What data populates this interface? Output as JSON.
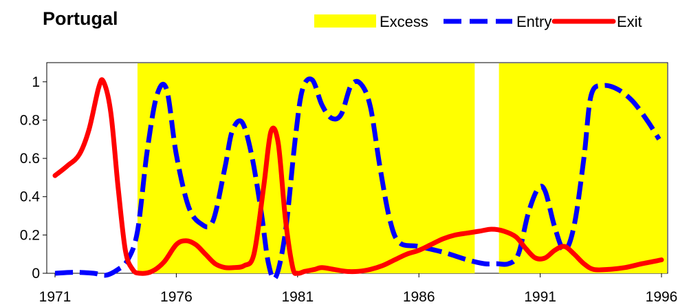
{
  "chart_data": {
    "type": "line",
    "title": "Portugal",
    "xlabel": "",
    "ylabel": "",
    "xlim": [
      1971,
      1996
    ],
    "ylim": [
      0,
      1.1
    ],
    "x_ticks": [
      "1971",
      "1976",
      "1981",
      "1986",
      "1991",
      "1996"
    ],
    "y_ticks": [
      "0",
      "0.2",
      "0.4",
      "0.6",
      "0.8",
      "1"
    ],
    "legend_position": "top-right",
    "excess_periods": [
      {
        "start": 1974.4,
        "end": 1988.3
      },
      {
        "start": 1989.3,
        "end": 1996.6
      }
    ],
    "series": [
      {
        "name": "Entry",
        "color": "#0000ff",
        "style": "dashed",
        "x": [
          1971,
          1971.8,
          1972.6,
          1973.1,
          1973.6,
          1974.0,
          1974.4,
          1974.8,
          1975.2,
          1975.6,
          1976.0,
          1976.5,
          1977.0,
          1977.5,
          1978.0,
          1978.3,
          1978.7,
          1979.1,
          1979.5,
          1979.8,
          1980.1,
          1980.5,
          1980.9,
          1981.2,
          1981.6,
          1982.0,
          1982.4,
          1982.8,
          1983.2,
          1983.6,
          1984.0,
          1984.4,
          1984.8,
          1985.2,
          1986.0,
          1987.0,
          1988.0,
          1988.7,
          1989.2,
          1989.7,
          1990.1,
          1990.5,
          1990.9,
          1991.2,
          1991.6,
          1992.0,
          1992.4,
          1992.8,
          1993.1,
          1993.6,
          1994.2,
          1994.8,
          1995.4,
          1995.9
        ],
        "values": [
          0.0,
          0.005,
          0.0,
          -0.01,
          0.02,
          0.07,
          0.22,
          0.64,
          0.93,
          0.96,
          0.62,
          0.35,
          0.26,
          0.27,
          0.55,
          0.74,
          0.79,
          0.62,
          0.32,
          0.05,
          -0.02,
          0.22,
          0.7,
          0.96,
          1.01,
          0.88,
          0.81,
          0.83,
          0.98,
          0.99,
          0.87,
          0.55,
          0.28,
          0.16,
          0.14,
          0.11,
          0.07,
          0.05,
          0.05,
          0.05,
          0.1,
          0.31,
          0.44,
          0.43,
          0.24,
          0.12,
          0.25,
          0.6,
          0.93,
          0.98,
          0.96,
          0.9,
          0.8,
          0.7
        ]
      },
      {
        "name": "Exit",
        "color": "#ff0000",
        "style": "solid",
        "x": [
          1971,
          1971.5,
          1972.0,
          1972.4,
          1972.8,
          1973.0,
          1973.3,
          1973.6,
          1973.9,
          1974.2,
          1974.5,
          1975.0,
          1975.5,
          1976.0,
          1976.4,
          1976.8,
          1977.2,
          1977.6,
          1978.0,
          1978.4,
          1978.8,
          1979.2,
          1979.6,
          1979.9,
          1980.2,
          1980.5,
          1980.8,
          1981.0,
          1981.3,
          1981.7,
          1982.0,
          1982.5,
          1983.0,
          1983.5,
          1984.0,
          1984.5,
          1985.0,
          1985.5,
          1986.0,
          1986.5,
          1987.0,
          1987.5,
          1988.0,
          1988.5,
          1989.0,
          1989.5,
          1990.0,
          1990.4,
          1990.8,
          1991.2,
          1991.6,
          1992.0,
          1992.4,
          1992.8,
          1993.2,
          1993.8,
          1994.5,
          1995.2,
          1996.0
        ],
        "values": [
          0.51,
          0.56,
          0.62,
          0.75,
          0.97,
          1.0,
          0.84,
          0.45,
          0.12,
          0.02,
          0.0,
          0.01,
          0.06,
          0.15,
          0.17,
          0.15,
          0.1,
          0.05,
          0.03,
          0.03,
          0.04,
          0.1,
          0.45,
          0.74,
          0.68,
          0.28,
          0.03,
          0.0,
          0.01,
          0.02,
          0.03,
          0.02,
          0.01,
          0.01,
          0.02,
          0.04,
          0.07,
          0.1,
          0.12,
          0.15,
          0.18,
          0.2,
          0.21,
          0.22,
          0.23,
          0.22,
          0.19,
          0.13,
          0.08,
          0.08,
          0.12,
          0.14,
          0.1,
          0.05,
          0.02,
          0.02,
          0.03,
          0.05,
          0.07
        ]
      }
    ],
    "legend": [
      {
        "label": "Excess",
        "kind": "area",
        "color": "#ffff00"
      },
      {
        "label": "Entry",
        "kind": "dashed-line",
        "color": "#0000ff"
      },
      {
        "label": "Exit",
        "kind": "solid-line",
        "color": "#ff0000"
      }
    ]
  }
}
